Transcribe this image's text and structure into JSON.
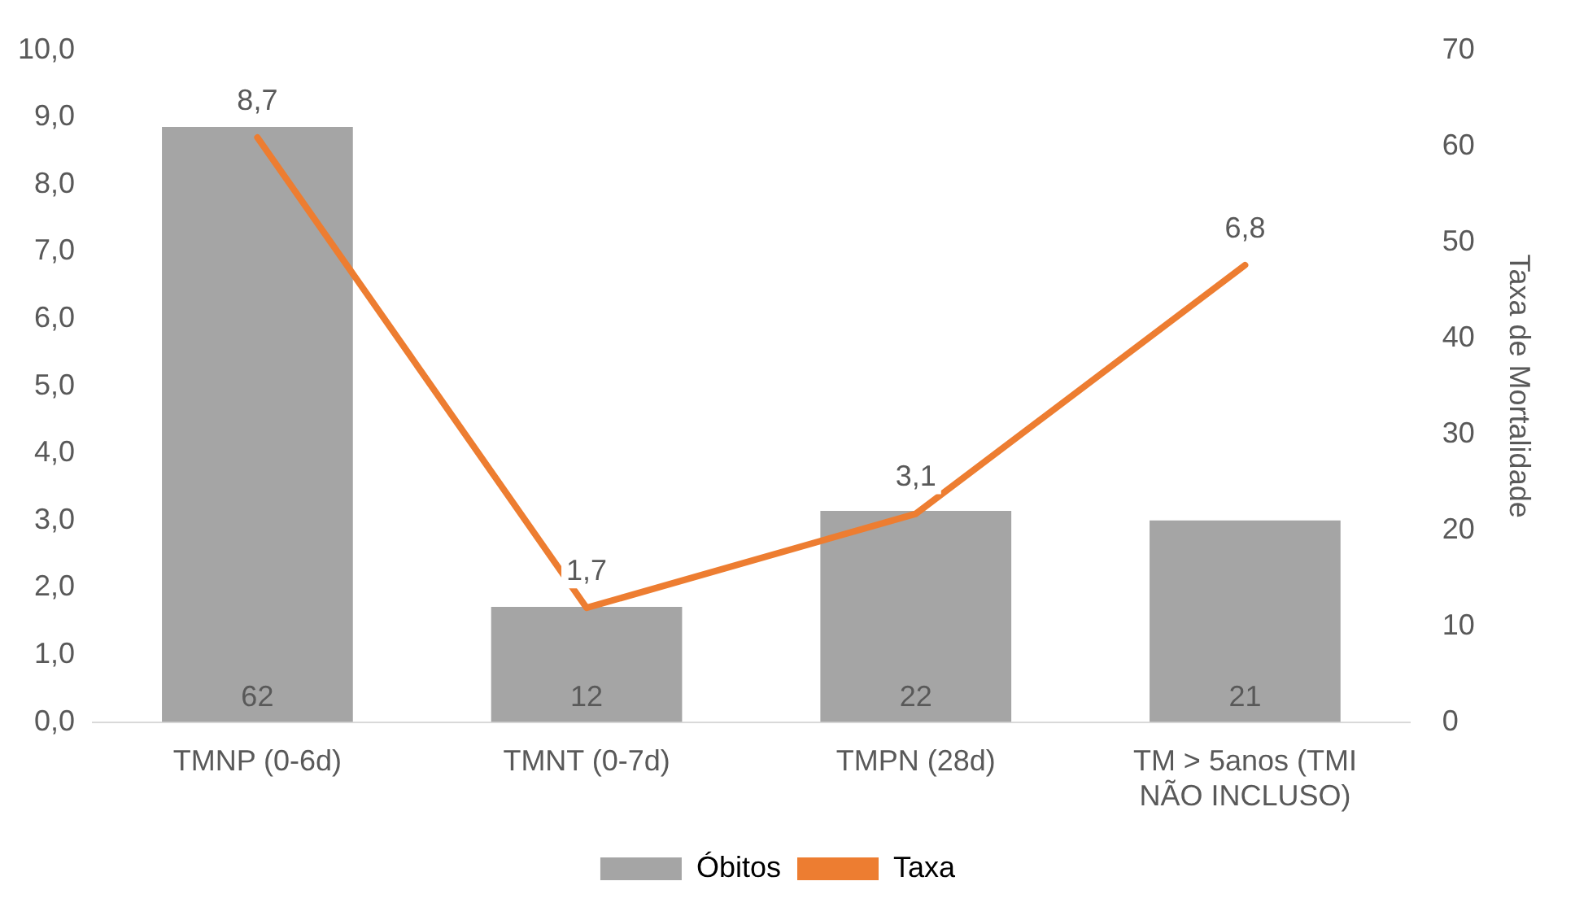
{
  "chart_data": {
    "type": "bar",
    "categories": [
      "TMNP (0-6d)",
      "TMNT (0-7d)",
      "TMPN (28d)",
      "TM > 5anos (TMI NÃO INCLUSO)"
    ],
    "series": [
      {
        "name": "Óbitos",
        "axis": "y2",
        "color": "#a5a5a5",
        "values": [
          62,
          12,
          22,
          21
        ],
        "value_labels": [
          "62",
          "12",
          "22",
          "21"
        ]
      },
      {
        "name": "Taxa",
        "type": "line",
        "color": "#ed7d31",
        "values": [
          8.7,
          1.7,
          3.1,
          6.8
        ],
        "value_labels": [
          "8,7",
          "1,7",
          "3,1",
          "6,8"
        ]
      }
    ],
    "ylim": [
      0,
      10
    ],
    "yticks": [
      {
        "value": 0,
        "label": "0,0"
      },
      {
        "value": 1,
        "label": "1,0"
      },
      {
        "value": 2,
        "label": "2,0"
      },
      {
        "value": 3,
        "label": "3,0"
      },
      {
        "value": 4,
        "label": "4,0"
      },
      {
        "value": 5,
        "label": "5,0"
      },
      {
        "value": 6,
        "label": "6,0"
      },
      {
        "value": 7,
        "label": "7,0"
      },
      {
        "value": 8,
        "label": "8,0"
      },
      {
        "value": 9,
        "label": "9,0"
      },
      {
        "value": 10,
        "label": "10,0"
      }
    ],
    "y2lim": [
      0,
      70
    ],
    "y2ticks": [
      0,
      10,
      20,
      30,
      40,
      50,
      60,
      70
    ],
    "y2label": "Taxa de Mortalidade",
    "legend": "bottom",
    "grid": false,
    "marker": "none"
  }
}
